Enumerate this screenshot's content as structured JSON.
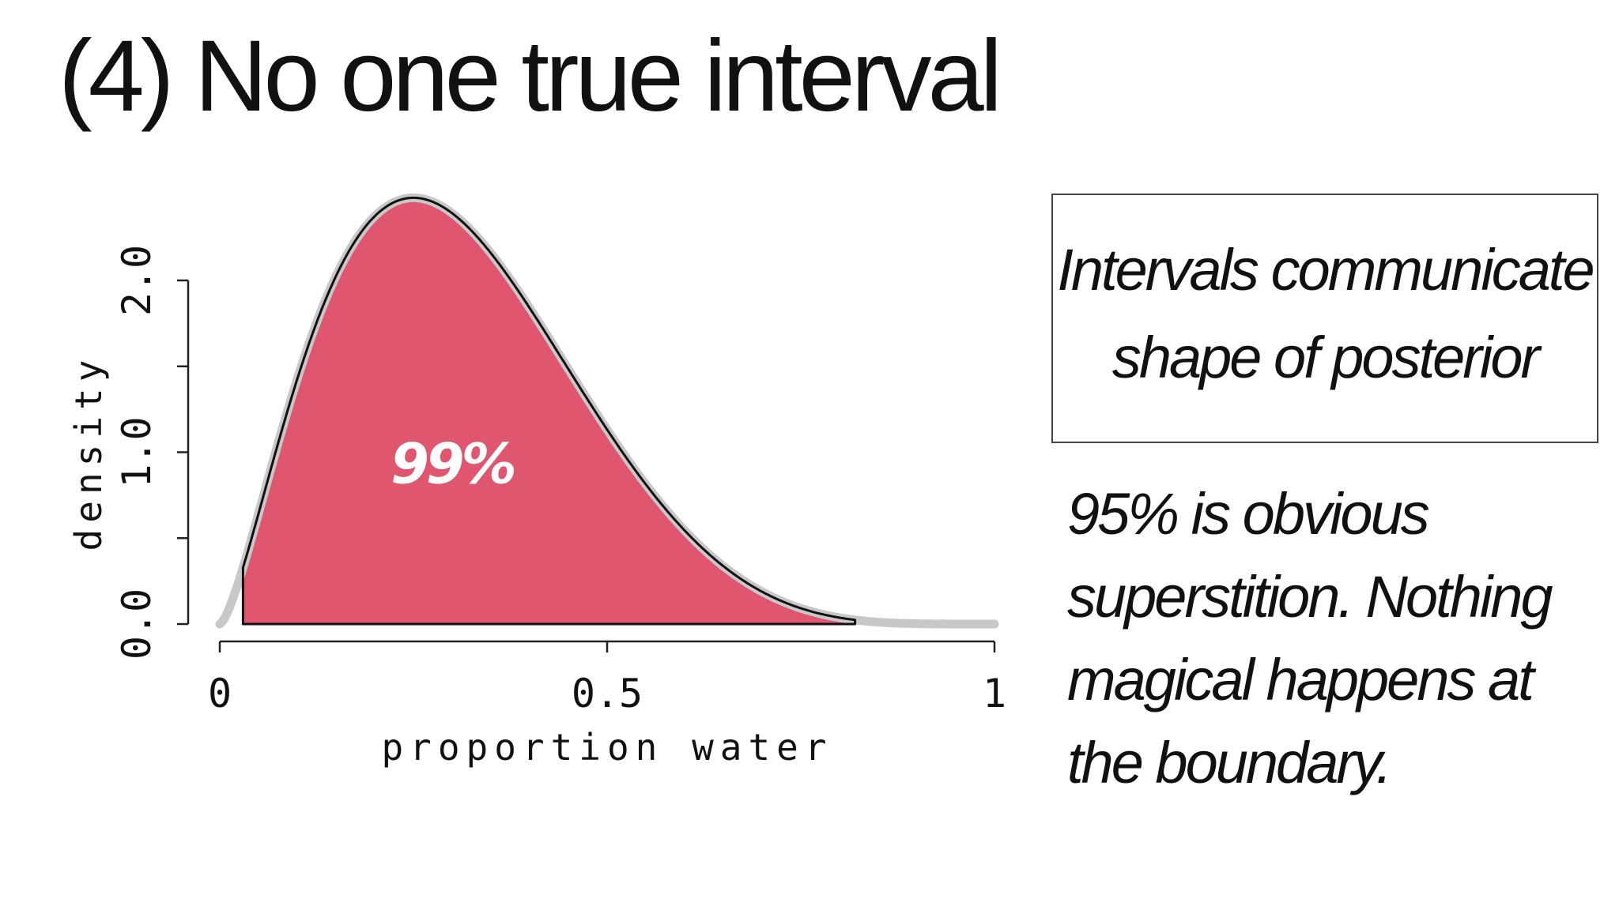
{
  "title": "(4) No one true interval",
  "callout": "Intervals communicate shape of posterior",
  "note": "95% is obvious superstition. Nothing magical happens at the boundary.",
  "colors": {
    "interval_fill": "#e0566f",
    "density_curve": "#c8c8c8",
    "interval_outline": "#111111"
  },
  "chart_data": {
    "type": "area",
    "xlabel": "proportion water",
    "ylabel": "density",
    "xlim": [
      0,
      1
    ],
    "ylim": [
      0,
      2
    ],
    "x_ticks": [
      0,
      0.5,
      1
    ],
    "x_tick_labels": [
      "0",
      "0.5",
      "1"
    ],
    "y_ticks": [
      0,
      0.5,
      1,
      1.5,
      2
    ],
    "y_tick_labels": [
      "0.0",
      "",
      "1.0",
      "",
      "2.0"
    ],
    "curve": {
      "distribution": "beta",
      "alpha": 2.5,
      "beta": 5.5
    },
    "interval": {
      "lower": 0.03,
      "upper": 0.82,
      "label": "99%"
    }
  }
}
